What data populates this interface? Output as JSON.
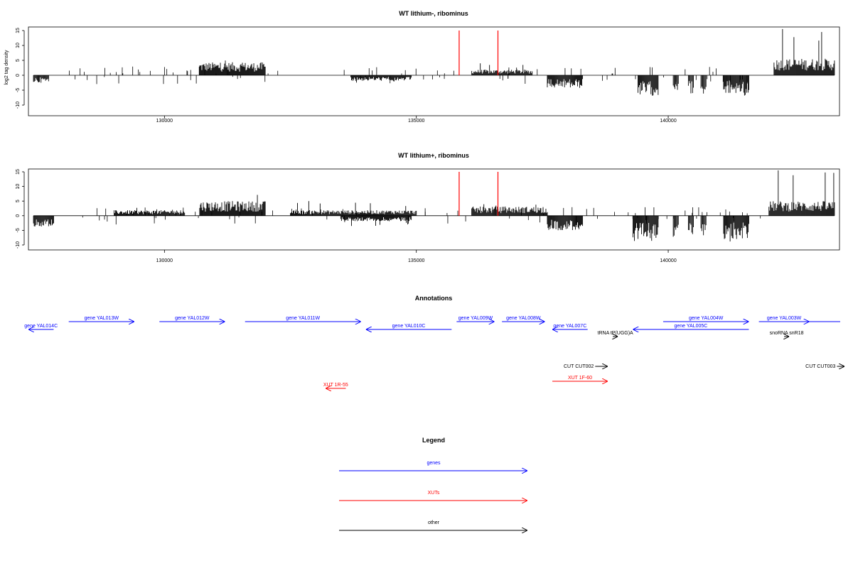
{
  "chart_data": [
    {
      "type": "bar",
      "title": "WT lithium-, ribominus",
      "ylabel": "log2 tag density",
      "xlabel": "",
      "xlim": [
        127300,
        143400
      ],
      "ylim": [
        -10,
        15
      ],
      "x_ticks": [
        130000,
        135000,
        140000
      ],
      "x_tick_labels": [
        "130000",
        "135000",
        "140000"
      ],
      "y_ticks": [
        -10,
        -5,
        0,
        5,
        10,
        15
      ],
      "y_tick_labels": [
        "-10",
        "-5",
        "0",
        "5",
        "10",
        "15"
      ],
      "grid": false,
      "highlight_lines": {
        "color": "#ff0000",
        "x": [
          135850,
          136620
        ]
      },
      "bar_color": "#000000",
      "tracks": [
        {
          "strand": "plus",
          "x_start": 130700,
          "x_end": 132000,
          "typical": 3.5,
          "peak": 6
        },
        {
          "strand": "plus",
          "x_start": 136100,
          "x_end": 137300,
          "typical": 1.5,
          "peak": 4
        },
        {
          "strand": "plus",
          "x_start": 142100,
          "x_end": 143300,
          "typical": 4.5,
          "peak": 15.5
        },
        {
          "strand": "minus",
          "x_start": 127400,
          "x_end": 127700,
          "typical": -2,
          "peak": -3
        },
        {
          "strand": "minus",
          "x_start": 133700,
          "x_end": 134900,
          "typical": -1.5,
          "peak": -2.5
        },
        {
          "strand": "minus",
          "x_start": 137600,
          "x_end": 138300,
          "typical": -3.5,
          "peak": -5
        },
        {
          "strand": "minus",
          "x_start": 139400,
          "x_end": 139800,
          "typical": -5.5,
          "peak": -7
        },
        {
          "strand": "minus",
          "x_start": 140100,
          "x_end": 140200,
          "typical": -4,
          "peak": -5
        },
        {
          "strand": "minus",
          "x_start": 140400,
          "x_end": 140500,
          "typical": -5,
          "peak": -6.5
        },
        {
          "strand": "minus",
          "x_start": 140650,
          "x_end": 140750,
          "typical": -5,
          "peak": -6.5
        },
        {
          "strand": "minus",
          "x_start": 141100,
          "x_end": 141600,
          "typical": -5,
          "peak": -7
        }
      ]
    },
    {
      "type": "bar",
      "title": "WT lithium+, ribominus",
      "ylabel": "",
      "xlabel": "",
      "xlim": [
        127300,
        143400
      ],
      "ylim": [
        -10,
        15
      ],
      "x_ticks": [
        130000,
        135000,
        140000
      ],
      "x_tick_labels": [
        "130000",
        "135000",
        "140000"
      ],
      "y_ticks": [
        -10,
        -5,
        0,
        5,
        10,
        15
      ],
      "y_tick_labels": [
        "-10",
        "-5",
        "0",
        "5",
        "10",
        "15"
      ],
      "grid": false,
      "highlight_lines": {
        "color": "#ff0000",
        "x": [
          135850,
          136620
        ]
      },
      "bar_color": "#000000",
      "tracks": [
        {
          "strand": "plus",
          "x_start": 129000,
          "x_end": 130400,
          "typical": 1.5,
          "peak": 3
        },
        {
          "strand": "plus",
          "x_start": 130700,
          "x_end": 132000,
          "typical": 4,
          "peak": 7.5
        },
        {
          "strand": "plus",
          "x_start": 132500,
          "x_end": 135000,
          "typical": 1.5,
          "peak": 5
        },
        {
          "strand": "plus",
          "x_start": 136100,
          "x_end": 137600,
          "typical": 2.5,
          "peak": 5
        },
        {
          "strand": "plus",
          "x_start": 142000,
          "x_end": 143300,
          "typical": 4,
          "peak": 15.5
        },
        {
          "strand": "minus",
          "x_start": 127400,
          "x_end": 127800,
          "typical": -3,
          "peak": -4.5
        },
        {
          "strand": "minus",
          "x_start": 133500,
          "x_end": 134900,
          "typical": -1.5,
          "peak": -3.5
        },
        {
          "strand": "minus",
          "x_start": 137600,
          "x_end": 138300,
          "typical": -4,
          "peak": -6.5
        },
        {
          "strand": "minus",
          "x_start": 139300,
          "x_end": 139800,
          "typical": -7,
          "peak": -9.5
        },
        {
          "strand": "minus",
          "x_start": 140100,
          "x_end": 140200,
          "typical": -6,
          "peak": -7
        },
        {
          "strand": "minus",
          "x_start": 140400,
          "x_end": 140500,
          "typical": -6,
          "peak": -8
        },
        {
          "strand": "minus",
          "x_start": 140650,
          "x_end": 140750,
          "typical": -6,
          "peak": -8
        },
        {
          "strand": "minus",
          "x_start": 141100,
          "x_end": 141600,
          "typical": -6.5,
          "peak": -9.5
        }
      ]
    }
  ],
  "annotations": {
    "title": "Annotations",
    "features": [
      {
        "label": "gene YAL014C",
        "kind": "gene",
        "strand": "-",
        "row": "lower",
        "x_start": 127300,
        "x_end": 127800
      },
      {
        "label": "gene YAL013W",
        "kind": "gene",
        "strand": "+",
        "row": "upper",
        "x_start": 128100,
        "x_end": 129400
      },
      {
        "label": "gene YAL012W",
        "kind": "gene",
        "strand": "+",
        "row": "upper",
        "x_start": 129900,
        "x_end": 131200
      },
      {
        "label": "gene YAL011W",
        "kind": "gene",
        "strand": "+",
        "row": "upper",
        "x_start": 131600,
        "x_end": 133900
      },
      {
        "label": "gene YAL010C",
        "kind": "gene",
        "strand": "-",
        "row": "lower",
        "x_start": 134000,
        "x_end": 135700
      },
      {
        "label": "gene YAL009W",
        "kind": "gene",
        "strand": "+",
        "row": "upper",
        "x_start": 135800,
        "x_end": 136550
      },
      {
        "label": "gene YAL008W",
        "kind": "gene",
        "strand": "+",
        "row": "upper",
        "x_start": 136700,
        "x_end": 137550
      },
      {
        "label": "gene YAL007C",
        "kind": "gene",
        "strand": "-",
        "row": "lower",
        "x_start": 137700,
        "x_end": 138400
      },
      {
        "label": "tRNA tP(UGG)A",
        "kind": "other",
        "strand": "+",
        "row": "lower2",
        "x_start": 138900,
        "x_end": 139000
      },
      {
        "label": "gene YAL005C",
        "kind": "gene",
        "strand": "-",
        "row": "lower",
        "x_start": 139300,
        "x_end": 141600
      },
      {
        "label": "gene YAL004W",
        "kind": "gene",
        "strand": "+",
        "row": "upper",
        "x_start": 139900,
        "x_end": 141600
      },
      {
        "label": "gene YAL003W",
        "kind": "gene",
        "strand": "+",
        "row": "upper",
        "x_start": 141800,
        "x_end": 142800
      },
      {
        "label": "snoRNA snR18",
        "kind": "other",
        "strand": "+",
        "row": "lower2",
        "x_start": 142300,
        "x_end": 142400
      },
      {
        "label": "CUT CUT002",
        "kind": "other",
        "strand": "+",
        "row": "cut",
        "x_start": 138550,
        "x_end": 138800
      },
      {
        "label": "CUT CUT003",
        "kind": "other",
        "strand": "+",
        "row": "cut",
        "x_start": 143350,
        "x_end": 143500
      },
      {
        "label": "XUT 1F-60",
        "kind": "xut",
        "strand": "+",
        "row": "xut1",
        "x_start": 137700,
        "x_end": 138800
      },
      {
        "label": "XUT 1R-55",
        "kind": "xut",
        "strand": "-",
        "row": "xut2",
        "x_start": 133200,
        "x_end": 133600
      }
    ]
  },
  "legend": {
    "title": "Legend",
    "items": [
      {
        "label": "genes",
        "color": "#0000ff"
      },
      {
        "label": "XUTs",
        "color": "#ff0000"
      },
      {
        "label": "other",
        "color": "#000000"
      }
    ]
  }
}
